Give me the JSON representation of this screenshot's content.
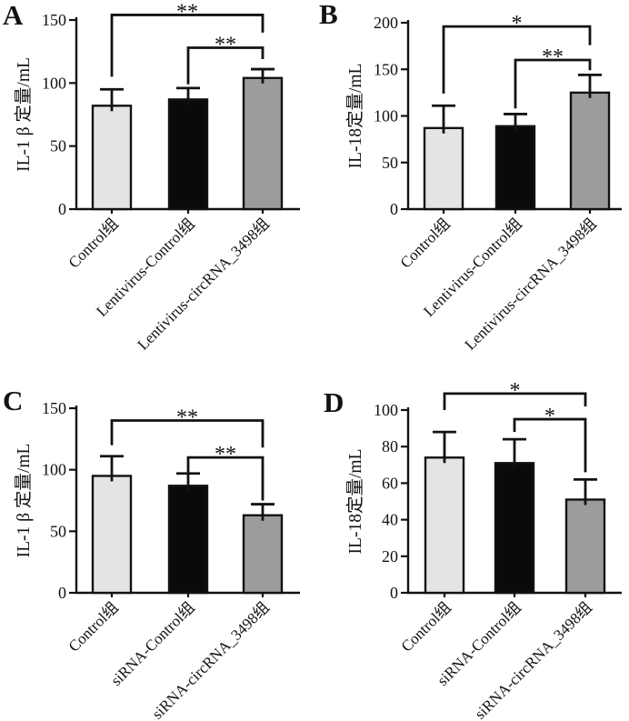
{
  "figure": {
    "panel_letters": [
      "A",
      "B",
      "C",
      "D"
    ],
    "style": {
      "bar_colors": [
        "#e4e4e4",
        "#0a0a0a",
        "#9c9c9c"
      ],
      "ink_color": "#121212",
      "background": "#ffffff"
    }
  },
  "chart_data": [
    {
      "panel": "A",
      "type": "bar",
      "title": "",
      "xlabel": "",
      "ylabel": "IL-1 β 定量/mL",
      "ylim": [
        0,
        150
      ],
      "yticks": [
        0,
        50,
        100,
        150
      ],
      "categories": [
        "Control组",
        "Lentivirus-Control组",
        "Lentivirus-circRNA_3498组"
      ],
      "values": [
        82,
        87,
        104
      ],
      "errors": [
        13,
        9,
        7
      ],
      "significance": [
        {
          "from": 0,
          "to": 2,
          "label": "**",
          "y": 154,
          "left_leg_to": 105,
          "right_leg_to": 140
        },
        {
          "from": 1,
          "to": 2,
          "label": "**",
          "y": 128,
          "left_leg_to": 99,
          "right_leg_to": 119
        }
      ]
    },
    {
      "panel": "B",
      "type": "bar",
      "title": "",
      "xlabel": "",
      "ylabel": "IL-18定量/mL",
      "ylim": [
        0,
        200
      ],
      "yticks": [
        0,
        50,
        100,
        150,
        200
      ],
      "categories": [
        "Control组",
        "Lentivirus-Control组",
        "Lentivirus-circRNA_3498组"
      ],
      "values": [
        87,
        89,
        125
      ],
      "errors": [
        24,
        13,
        19
      ],
      "significance": [
        {
          "from": 0,
          "to": 2,
          "label": "*",
          "y": 196,
          "left_leg_to": 124,
          "right_leg_to": 176
        },
        {
          "from": 1,
          "to": 2,
          "label": "**",
          "y": 160,
          "left_leg_to": 108,
          "right_leg_to": 149
        }
      ]
    },
    {
      "panel": "C",
      "type": "bar",
      "title": "",
      "xlabel": "",
      "ylabel": "IL-1 β 定量/mL",
      "ylim": [
        0,
        150
      ],
      "yticks": [
        0,
        50,
        100,
        150
      ],
      "categories": [
        "Control组",
        "siRNA-Control组",
        "siRNA-circRNA_3498组"
      ],
      "values": [
        95,
        87,
        63
      ],
      "errors": [
        16,
        10,
        9
      ],
      "significance": [
        {
          "from": 0,
          "to": 2,
          "label": "**",
          "y": 140,
          "left_leg_to": 120,
          "right_leg_to": 118
        },
        {
          "from": 1,
          "to": 2,
          "label": "**",
          "y": 110,
          "left_leg_to": 96,
          "right_leg_to": 75
        }
      ]
    },
    {
      "panel": "D",
      "type": "bar",
      "title": "",
      "xlabel": "",
      "ylabel": "IL-18定量/mL",
      "ylim": [
        0,
        100
      ],
      "yticks": [
        0,
        20,
        40,
        60,
        80,
        100
      ],
      "categories": [
        "Control组",
        "siRNA-Control组",
        "siRNA-circRNA_3498组"
      ],
      "values": [
        74,
        71,
        51
      ],
      "errors": [
        14,
        13,
        11
      ],
      "significance": [
        {
          "from": 0,
          "to": 2,
          "label": "*",
          "y": 109,
          "left_leg_to": 100,
          "right_leg_to": 102
        },
        {
          "from": 1,
          "to": 2,
          "label": "*",
          "y": 95,
          "left_leg_to": 88,
          "right_leg_to": 66
        }
      ]
    }
  ]
}
